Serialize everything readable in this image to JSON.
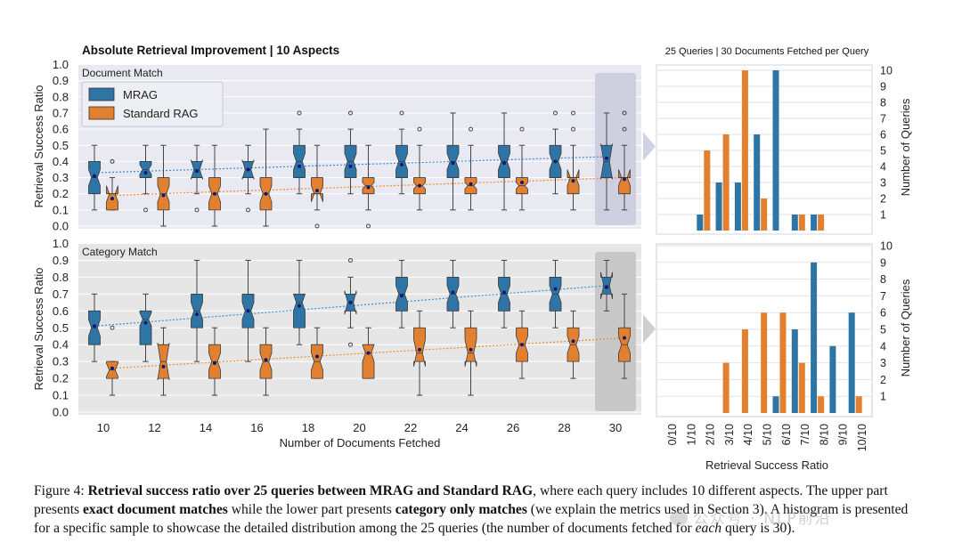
{
  "figure": {
    "main_title": "Absolute Retrieval Improvement | 10 Aspects",
    "hist_title": "25 Queries | 30 Documents Fetched per Query",
    "xlabel": "Number of Documents Fetched",
    "ylabel": "Retrieval Success Ratio",
    "hist_xlabel": "Retrieval Success Ratio",
    "hist_ylabel": "Number of Queries",
    "colors": {
      "mrag": "#2e75a6",
      "std": "#e3802f",
      "panel_doc": "#e9e9f2",
      "panel_cat": "#e6e6e6",
      "trend_mrag": "#3a8fd6",
      "trend_std": "#f08a2a",
      "median_dot": "#0a1a7a"
    }
  },
  "legend": {
    "mrag": "MRAG",
    "std": "Standard RAG"
  },
  "caption": {
    "prefix": "Figure 4: ",
    "bold1": "Retrieval success ratio over 25 queries between MRAG and Standard RAG",
    "t1": ", where each query includes 10 different aspects. The upper part presents ",
    "bold2": "exact document matches",
    "t2": " while the lower part presents ",
    "bold3": "category only matches",
    "t3": " (we explain the metrics used in Section 3). A histogram is presented for a specific sample to showcase the detailed distribution among the 25 queries (the number of documents fetched for ",
    "italic1": "each",
    "t4": " query is 30)."
  },
  "watermark": "公众号 · NLP前沿",
  "chart_data": [
    {
      "type": "box",
      "panel_label": "Document Match",
      "categories": [
        "10",
        "12",
        "14",
        "16",
        "18",
        "20",
        "22",
        "24",
        "26",
        "28",
        "30"
      ],
      "ylim": [
        0,
        1.0
      ],
      "yticks": [
        "0.0",
        "0.1",
        "0.2",
        "0.3",
        "0.4",
        "0.5",
        "0.6",
        "0.7",
        "0.8",
        "0.9",
        "1.0"
      ],
      "highlight_category": "30",
      "series": [
        {
          "name": "MRAG",
          "boxes": [
            {
              "wl": 0.1,
              "q1": 0.2,
              "med": 0.3,
              "q3": 0.4,
              "wh": 0.5,
              "mean": 0.31,
              "notch": 0.05,
              "outliers": []
            },
            {
              "wl": 0.2,
              "q1": 0.3,
              "med": 0.35,
              "q3": 0.4,
              "wh": 0.5,
              "mean": 0.33,
              "notch": 0.03,
              "outliers": [
                0.1
              ]
            },
            {
              "wl": 0.2,
              "q1": 0.3,
              "med": 0.35,
              "q3": 0.4,
              "wh": 0.5,
              "mean": 0.34,
              "notch": 0.06,
              "outliers": [
                0.1
              ]
            },
            {
              "wl": 0.2,
              "q1": 0.3,
              "med": 0.35,
              "q3": 0.4,
              "wh": 0.5,
              "mean": 0.35,
              "notch": 0.06,
              "outliers": [
                0.1
              ]
            },
            {
              "wl": 0.2,
              "q1": 0.3,
              "med": 0.4,
              "q3": 0.5,
              "wh": 0.6,
              "mean": 0.37,
              "notch": 0.05,
              "outliers": [
                0.7
              ]
            },
            {
              "wl": 0.2,
              "q1": 0.3,
              "med": 0.4,
              "q3": 0.5,
              "wh": 0.6,
              "mean": 0.37,
              "notch": 0.05,
              "outliers": [
                0.7
              ]
            },
            {
              "wl": 0.2,
              "q1": 0.3,
              "med": 0.4,
              "q3": 0.5,
              "wh": 0.6,
              "mean": 0.38,
              "notch": 0.05,
              "outliers": [
                0.7
              ]
            },
            {
              "wl": 0.1,
              "q1": 0.3,
              "med": 0.4,
              "q3": 0.5,
              "wh": 0.7,
              "mean": 0.39,
              "notch": 0.05,
              "outliers": []
            },
            {
              "wl": 0.1,
              "q1": 0.3,
              "med": 0.4,
              "q3": 0.5,
              "wh": 0.7,
              "mean": 0.39,
              "notch": 0.05,
              "outliers": []
            },
            {
              "wl": 0.2,
              "q1": 0.3,
              "med": 0.4,
              "q3": 0.5,
              "wh": 0.6,
              "mean": 0.4,
              "notch": 0.05,
              "outliers": [
                0.7
              ]
            },
            {
              "wl": 0.1,
              "q1": 0.3,
              "med": 0.4,
              "q3": 0.5,
              "wh": 0.7,
              "mean": 0.42,
              "notch": 0.11,
              "outliers": []
            }
          ]
        },
        {
          "name": "Standard RAG",
          "boxes": [
            {
              "wl": 0.1,
              "q1": 0.1,
              "med": 0.2,
              "q3": 0.2,
              "wh": 0.3,
              "mean": 0.17,
              "notch": 0.05,
              "outliers": [
                0.4
              ]
            },
            {
              "wl": 0.0,
              "q1": 0.1,
              "med": 0.2,
              "q3": 0.3,
              "wh": 0.5,
              "mean": 0.19,
              "notch": 0.05,
              "outliers": []
            },
            {
              "wl": 0.0,
              "q1": 0.1,
              "med": 0.2,
              "q3": 0.3,
              "wh": 0.5,
              "mean": 0.2,
              "notch": 0.05,
              "outliers": []
            },
            {
              "wl": 0.0,
              "q1": 0.1,
              "med": 0.2,
              "q3": 0.3,
              "wh": 0.6,
              "mean": 0.2,
              "notch": 0.05,
              "outliers": []
            },
            {
              "wl": 0.1,
              "q1": 0.2,
              "med": 0.2,
              "q3": 0.3,
              "wh": 0.5,
              "mean": 0.22,
              "notch": 0.05,
              "outliers": [
                0.0
              ]
            },
            {
              "wl": 0.1,
              "q1": 0.2,
              "med": 0.25,
              "q3": 0.3,
              "wh": 0.5,
              "mean": 0.24,
              "notch": 0.02,
              "outliers": [
                0.0
              ]
            },
            {
              "wl": 0.1,
              "q1": 0.2,
              "med": 0.25,
              "q3": 0.3,
              "wh": 0.5,
              "mean": 0.25,
              "notch": 0.02,
              "outliers": [
                0.6
              ]
            },
            {
              "wl": 0.1,
              "q1": 0.2,
              "med": 0.25,
              "q3": 0.3,
              "wh": 0.5,
              "mean": 0.26,
              "notch": 0.02,
              "outliers": [
                0.6
              ]
            },
            {
              "wl": 0.1,
              "q1": 0.2,
              "med": 0.25,
              "q3": 0.3,
              "wh": 0.5,
              "mean": 0.27,
              "notch": 0.02,
              "outliers": [
                0.6
              ]
            },
            {
              "wl": 0.1,
              "q1": 0.2,
              "med": 0.3,
              "q3": 0.3,
              "wh": 0.5,
              "mean": 0.28,
              "notch": 0.05,
              "outliers": [
                0.7,
                0.6
              ]
            },
            {
              "wl": 0.1,
              "q1": 0.2,
              "med": 0.3,
              "q3": 0.3,
              "wh": 0.5,
              "mean": 0.29,
              "notch": 0.05,
              "outliers": [
                0.7,
                0.6
              ]
            }
          ]
        }
      ],
      "trend": {
        "MRAG": [
          0.33,
          0.43
        ],
        "Standard RAG": [
          0.19,
          0.3
        ]
      }
    },
    {
      "type": "box",
      "panel_label": "Category Match",
      "categories": [
        "10",
        "12",
        "14",
        "16",
        "18",
        "20",
        "22",
        "24",
        "26",
        "28",
        "30"
      ],
      "ylim": [
        0,
        1.0
      ],
      "yticks": [
        "0.0",
        "0.1",
        "0.2",
        "0.3",
        "0.4",
        "0.5",
        "0.6",
        "0.7",
        "0.8",
        "0.9",
        "1.0"
      ],
      "highlight_category": "30",
      "series": [
        {
          "name": "MRAG",
          "boxes": [
            {
              "wl": 0.3,
              "q1": 0.4,
              "med": 0.5,
              "q3": 0.6,
              "wh": 0.7,
              "mean": 0.51,
              "notch": 0.05,
              "outliers": []
            },
            {
              "wl": 0.3,
              "q1": 0.4,
              "med": 0.55,
              "q3": 0.6,
              "wh": 0.7,
              "mean": 0.53,
              "notch": 0.04,
              "outliers": []
            },
            {
              "wl": 0.3,
              "q1": 0.5,
              "med": 0.6,
              "q3": 0.7,
              "wh": 0.9,
              "mean": 0.58,
              "notch": 0.05,
              "outliers": []
            },
            {
              "wl": 0.3,
              "q1": 0.5,
              "med": 0.6,
              "q3": 0.7,
              "wh": 0.9,
              "mean": 0.6,
              "notch": 0.05,
              "outliers": []
            },
            {
              "wl": 0.4,
              "q1": 0.5,
              "med": 0.65,
              "q3": 0.7,
              "wh": 0.9,
              "mean": 0.63,
              "notch": 0.05,
              "outliers": []
            },
            {
              "wl": 0.5,
              "q1": 0.6,
              "med": 0.65,
              "q3": 0.7,
              "wh": 0.8,
              "mean": 0.65,
              "notch": 0.07,
              "outliers": [
                0.9,
                0.4
              ]
            },
            {
              "wl": 0.5,
              "q1": 0.6,
              "med": 0.7,
              "q3": 0.8,
              "wh": 0.9,
              "mean": 0.69,
              "notch": 0.05,
              "outliers": []
            },
            {
              "wl": 0.5,
              "q1": 0.6,
              "med": 0.7,
              "q3": 0.8,
              "wh": 0.9,
              "mean": 0.71,
              "notch": 0.05,
              "outliers": []
            },
            {
              "wl": 0.5,
              "q1": 0.6,
              "med": 0.7,
              "q3": 0.8,
              "wh": 0.9,
              "mean": 0.71,
              "notch": 0.05,
              "outliers": []
            },
            {
              "wl": 0.5,
              "q1": 0.6,
              "med": 0.7,
              "q3": 0.8,
              "wh": 0.9,
              "mean": 0.73,
              "notch": 0.05,
              "outliers": []
            },
            {
              "wl": 0.6,
              "q1": 0.7,
              "med": 0.75,
              "q3": 0.8,
              "wh": 0.9,
              "mean": 0.74,
              "notch": 0.08,
              "outliers": []
            }
          ]
        },
        {
          "name": "Standard RAG",
          "boxes": [
            {
              "wl": 0.1,
              "q1": 0.2,
              "med": 0.25,
              "q3": 0.3,
              "wh": 0.3,
              "mean": 0.26,
              "notch": 0.04,
              "outliers": [
                0.5
              ]
            },
            {
              "wl": 0.1,
              "q1": 0.2,
              "med": 0.3,
              "q3": 0.4,
              "wh": 0.5,
              "mean": 0.27,
              "notch": 0.11,
              "outliers": []
            },
            {
              "wl": 0.1,
              "q1": 0.2,
              "med": 0.3,
              "q3": 0.4,
              "wh": 0.5,
              "mean": 0.29,
              "notch": 0.05,
              "outliers": []
            },
            {
              "wl": 0.1,
              "q1": 0.2,
              "med": 0.3,
              "q3": 0.4,
              "wh": 0.5,
              "mean": 0.31,
              "notch": 0.05,
              "outliers": []
            },
            {
              "wl": 0.2,
              "q1": 0.2,
              "med": 0.3,
              "q3": 0.4,
              "wh": 0.5,
              "mean": 0.33,
              "notch": 0.05,
              "outliers": []
            },
            {
              "wl": 0.2,
              "q1": 0.2,
              "med": 0.35,
              "q3": 0.4,
              "wh": 0.5,
              "mean": 0.35,
              "notch": 0.05,
              "outliers": []
            },
            {
              "wl": 0.1,
              "q1": 0.3,
              "med": 0.35,
              "q3": 0.5,
              "wh": 0.6,
              "mean": 0.37,
              "notch": 0.08,
              "outliers": []
            },
            {
              "wl": 0.1,
              "q1": 0.3,
              "med": 0.35,
              "q3": 0.5,
              "wh": 0.6,
              "mean": 0.37,
              "notch": 0.08,
              "outliers": []
            },
            {
              "wl": 0.2,
              "q1": 0.3,
              "med": 0.4,
              "q3": 0.5,
              "wh": 0.6,
              "mean": 0.4,
              "notch": 0.05,
              "outliers": []
            },
            {
              "wl": 0.2,
              "q1": 0.3,
              "med": 0.4,
              "q3": 0.5,
              "wh": 0.6,
              "mean": 0.42,
              "notch": 0.05,
              "outliers": []
            },
            {
              "wl": 0.2,
              "q1": 0.3,
              "med": 0.4,
              "q3": 0.5,
              "wh": 0.7,
              "mean": 0.44,
              "notch": 0.05,
              "outliers": []
            }
          ]
        }
      ],
      "trend": {
        "MRAG": [
          0.51,
          0.75
        ],
        "Standard RAG": [
          0.26,
          0.44
        ]
      }
    },
    {
      "type": "bar",
      "categories": [
        "0/10",
        "1/10",
        "2/10",
        "3/10",
        "4/10",
        "5/10",
        "6/10",
        "7/10",
        "8/10",
        "9/10",
        "10/10"
      ],
      "ylim": [
        0,
        10.5
      ],
      "yticks": [
        "1",
        "2",
        "3",
        "4",
        "5",
        "6",
        "7",
        "8",
        "9",
        "10"
      ],
      "series": [
        {
          "name": "MRAG",
          "values": [
            0,
            1,
            3,
            3,
            6,
            10,
            1,
            1,
            0,
            0,
            0
          ]
        },
        {
          "name": "Standard RAG",
          "values": [
            0,
            5,
            6,
            10,
            2,
            0,
            1,
            1,
            0,
            0,
            0
          ]
        }
      ]
    },
    {
      "type": "bar",
      "categories": [
        "0/10",
        "1/10",
        "2/10",
        "3/10",
        "4/10",
        "5/10",
        "6/10",
        "7/10",
        "8/10",
        "9/10",
        "10/10"
      ],
      "ylim": [
        0,
        10.5
      ],
      "yticks": [
        "1",
        "2",
        "3",
        "4",
        "5",
        "6",
        "7",
        "8",
        "9",
        "10"
      ],
      "series": [
        {
          "name": "MRAG",
          "values": [
            0,
            0,
            0,
            0,
            0,
            1,
            5,
            9,
            4,
            6,
            0
          ]
        },
        {
          "name": "Standard RAG",
          "values": [
            0,
            0,
            3,
            5,
            6,
            6,
            3,
            1,
            0,
            1,
            0
          ]
        }
      ]
    }
  ]
}
